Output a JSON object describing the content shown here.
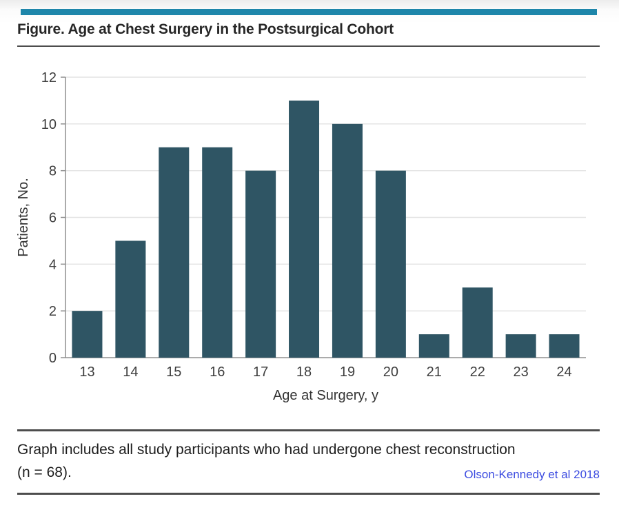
{
  "page": {
    "accent_color": "#1e86aa",
    "rule_color": "#4d4d4d",
    "background": "#ffffff"
  },
  "figure": {
    "title": "Figure. Age at Chest Surgery in the Postsurgical Cohort",
    "caption_line1": "Graph includes all study participants who had undergone chest reconstruction",
    "caption_line2": "(n = 68).",
    "citation": "Olson-Kennedy et al 2018",
    "citation_color": "#3b4be0"
  },
  "chart_data": {
    "type": "bar",
    "title": "Age at Chest Surgery in the Postsurgical Cohort",
    "categories": [
      "13",
      "14",
      "15",
      "16",
      "17",
      "18",
      "19",
      "20",
      "21",
      "22",
      "23",
      "24"
    ],
    "values": [
      2,
      5,
      9,
      9,
      8,
      11,
      10,
      8,
      1,
      3,
      1,
      1
    ],
    "xlabel": "Age at Surgery, y",
    "ylabel": "Patients, No.",
    "ylim": [
      0,
      12
    ],
    "yticks": [
      0,
      2,
      4,
      6,
      8,
      10,
      12
    ],
    "total_n": 68,
    "bar_color": "#2f5564",
    "gridline_color": "#e3e3e3",
    "axis_color": "#8f8f8f",
    "tick_label_color": "#3d3d3d",
    "axis_title_color": "#333333",
    "grid": true,
    "legend": "none"
  }
}
